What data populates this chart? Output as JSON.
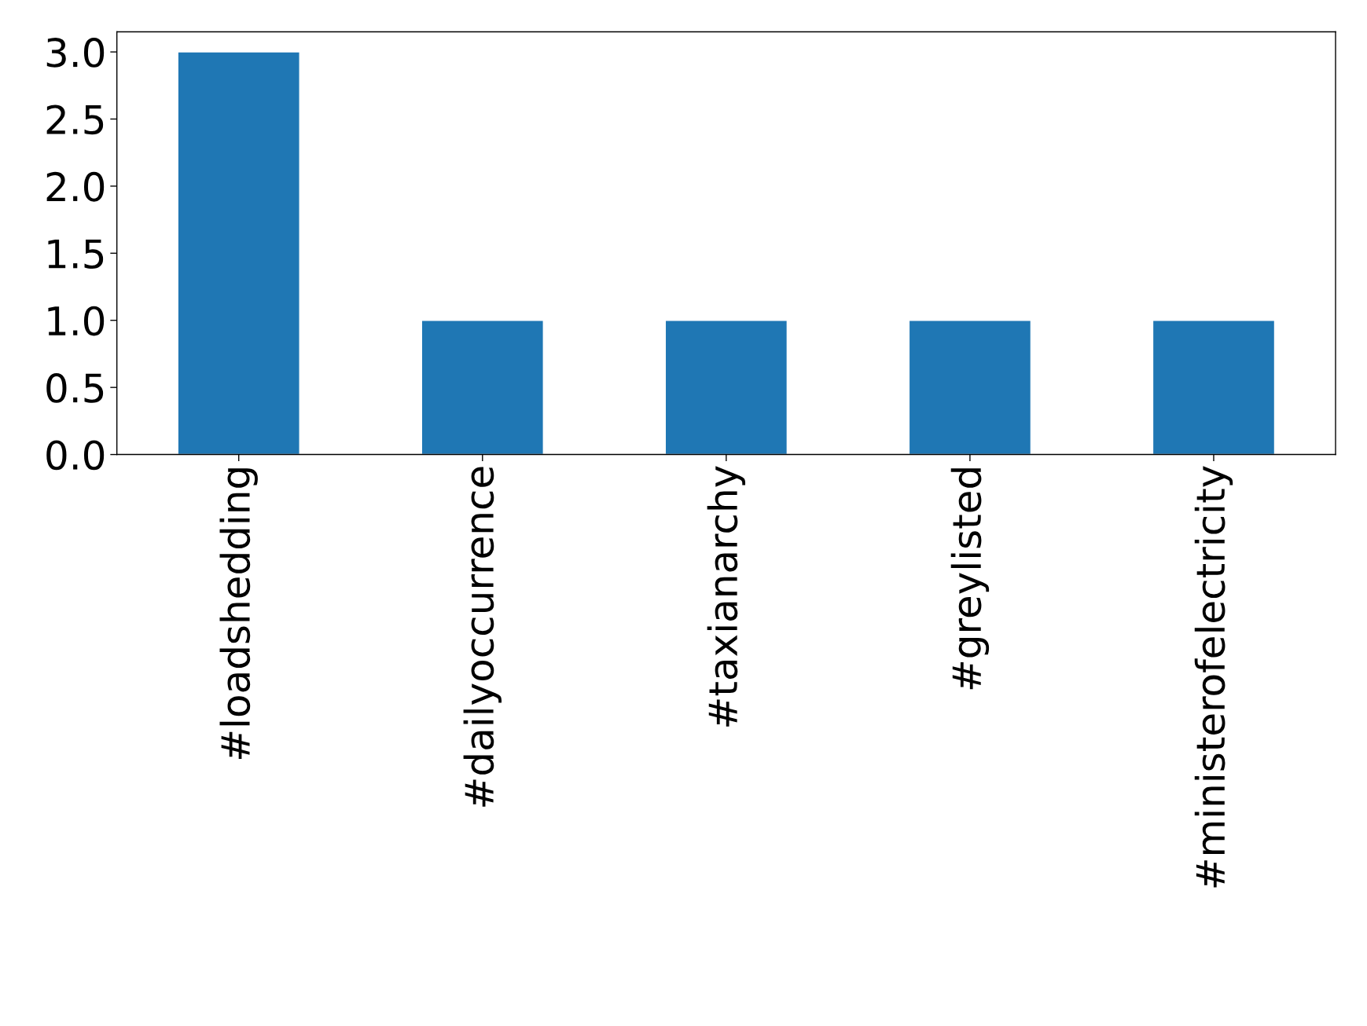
{
  "chart_data": {
    "type": "bar",
    "categories": [
      "#loadshedding",
      "#dailyoccurrence",
      "#taxianarchy",
      "#greylisted",
      "#ministerofelectricity"
    ],
    "values": [
      3,
      1,
      1,
      1,
      1
    ],
    "color": "#1f77b4",
    "ylim": [
      0,
      3.15
    ],
    "yticks": [
      {
        "value": 0,
        "label": "0.0"
      },
      {
        "value": 0.5,
        "label": "0.5"
      },
      {
        "value": 1,
        "label": "1.0"
      },
      {
        "value": 1.5,
        "label": "1.5"
      },
      {
        "value": 2,
        "label": "2.0"
      },
      {
        "value": 2.5,
        "label": "2.5"
      },
      {
        "value": 3,
        "label": "3.0"
      }
    ],
    "grid": false,
    "legend": false
  }
}
